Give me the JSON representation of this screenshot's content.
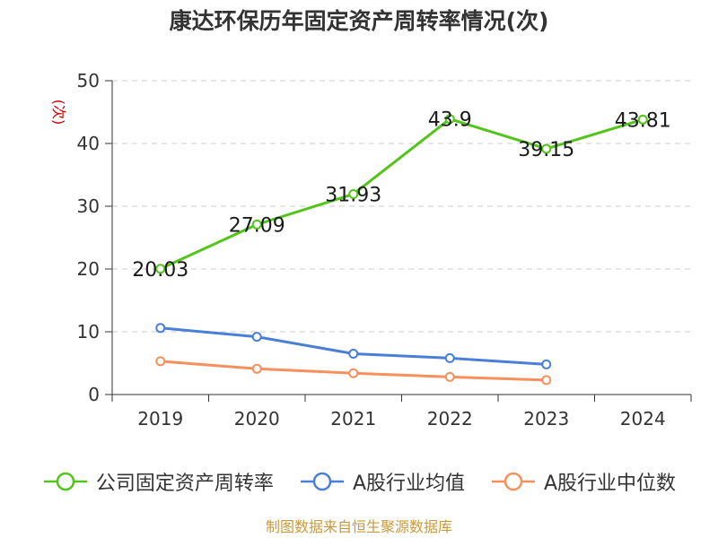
{
  "chart_data": {
    "type": "line",
    "title": "康达环保历年固定资产周转率情况(次)",
    "ylabel": "(次)",
    "xlabel": "",
    "categories": [
      "2019",
      "2020",
      "2021",
      "2022",
      "2023",
      "2024"
    ],
    "ylim": [
      0,
      50
    ],
    "yticks": [
      0,
      10,
      20,
      30,
      40,
      50
    ],
    "grid": "horizontal-dashed",
    "legend_position": "bottom",
    "series": [
      {
        "name": "公司固定资产周转率",
        "color": "#52c41a",
        "values": [
          20.03,
          27.09,
          31.93,
          43.9,
          39.15,
          43.81
        ],
        "labels": [
          "20.03",
          "27.09",
          "31.93",
          "43.9",
          "39.15",
          "43.81"
        ]
      },
      {
        "name": "A股行业均值",
        "color": "#4a7fd8",
        "values": [
          10.6,
          9.2,
          6.5,
          5.8,
          4.8,
          null
        ]
      },
      {
        "name": "A股行业中位数",
        "color": "#f7905c",
        "values": [
          5.3,
          4.1,
          3.4,
          2.8,
          2.3,
          null
        ]
      }
    ]
  },
  "source": {
    "text": "制图数据来自恒生聚源数据库",
    "color": "#c89a3c"
  }
}
